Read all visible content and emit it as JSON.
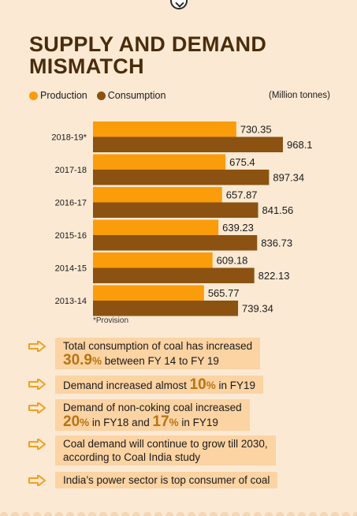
{
  "title_line1": "SUPPLY AND DEMAND",
  "title_line2": "MISMATCH",
  "legend": {
    "production": "Production",
    "consumption": "Consumption"
  },
  "unit": "(Million tonnes)",
  "note": "*Provision",
  "colors": {
    "production": "#fb9c0a",
    "consumption": "#8b5211",
    "highlight": "#b87413",
    "factbg": "#fcd3a3",
    "arrow": "#f0a020"
  },
  "chart_data": {
    "type": "bar",
    "orientation": "horizontal",
    "categories": [
      "2018-19*",
      "2017-18",
      "2016-17",
      "2015-16",
      "2014-15",
      "2013-14"
    ],
    "series": [
      {
        "name": "Production",
        "values": [
          730.35,
          675.4,
          657.87,
          639.23,
          609.18,
          565.77
        ]
      },
      {
        "name": "Consumption",
        "values": [
          968.1,
          897.34,
          841.56,
          836.73,
          822.13,
          739.34
        ]
      }
    ],
    "value_labels": {
      "production": [
        "730.35",
        "675.4",
        "657.87",
        "639.23",
        "609.18",
        "565.77"
      ],
      "consumption": [
        "968.1",
        "897.34",
        "841.56",
        "836.73",
        "822.13",
        "739.34"
      ]
    },
    "xlim": [
      0,
      968.1
    ],
    "grid": false
  },
  "facts": {
    "f1_a": "Total consumption of coal has increased",
    "f1_num": "30.9",
    "f1_pct": "%",
    "f1_b": " between FY 14 to FY 19",
    "f2_a": "Demand increased almost ",
    "f2_num": "10",
    "f2_pct": "%",
    "f2_b": " in FY19",
    "f3_a": "Demand of non-coking coal increased",
    "f3_num1": "20",
    "f3_pct1": "%",
    "f3_mid": " in FY18 and ",
    "f3_num2": "17",
    "f3_pct2": "%",
    "f3_b": " in FY19",
    "f4_a": "Coal demand will continue to grow till 2030,",
    "f4_b": "according to Coal India study",
    "f5": "India’s power sector is top consumer of coal"
  }
}
